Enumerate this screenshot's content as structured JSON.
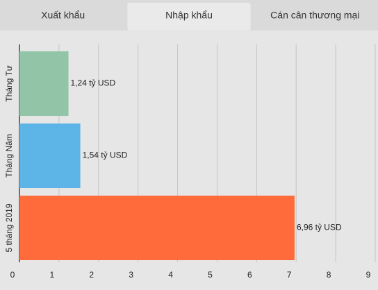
{
  "tabs": {
    "items": [
      "Xuất khẩu",
      "Nhập khẩu",
      "Cán cân thương mại"
    ],
    "active": 1
  },
  "chart_data": {
    "type": "bar",
    "orientation": "horizontal",
    "categories": [
      "Tháng Tư",
      "Tháng Năm",
      "5 tháng 2019"
    ],
    "values": [
      1.24,
      1.54,
      6.96
    ],
    "value_labels": [
      "1,24 tỷ USD",
      "1,54 tỷ USD",
      "6,96 tỷ USD"
    ],
    "colors": [
      "#92c5a7",
      "#5db4e6",
      "#ff6b3b"
    ],
    "xlim": [
      0,
      9
    ],
    "xticks": [
      0,
      1,
      2,
      3,
      4,
      5,
      6,
      7,
      8,
      9
    ],
    "grid": true
  }
}
